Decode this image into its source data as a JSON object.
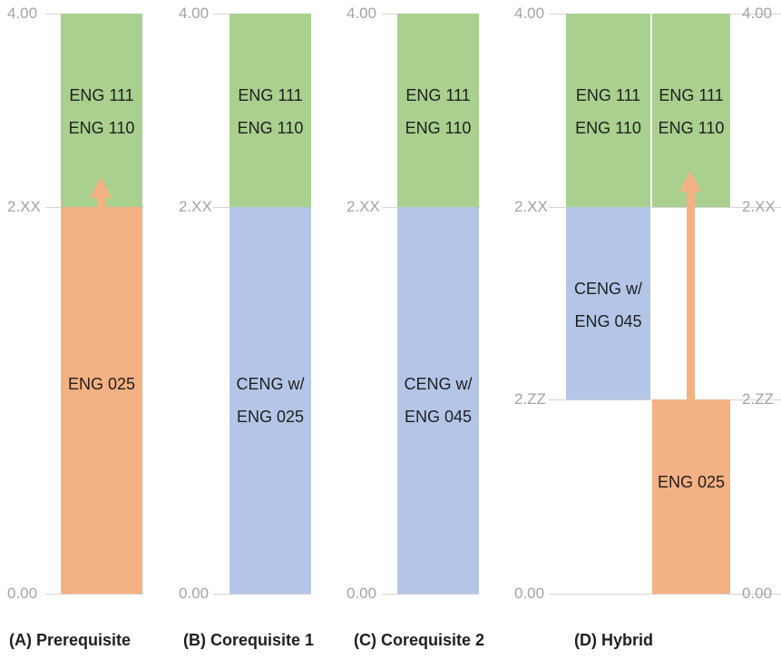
{
  "axis_ticks": {
    "top": "4.00",
    "mid": "2.XX",
    "low": "2.ZZ",
    "bottom": "0.00"
  },
  "colors": {
    "green": "#a9d08e",
    "orange": "#f4b183",
    "blue": "#b4c6e7",
    "gridline": "#d6d6d6"
  },
  "panels": {
    "a": {
      "caption": "(A) Prerequisite",
      "upper_line1": "ENG 111",
      "upper_line2": "ENG 110",
      "lower_line1": "ENG 025"
    },
    "b": {
      "caption": "(B) Corequisite 1",
      "upper_line1": "ENG 111",
      "upper_line2": "ENG 110",
      "lower_line1": "CENG w/",
      "lower_line2": "ENG 025"
    },
    "c": {
      "caption": "(C) Corequisite 2",
      "upper_line1": "ENG 111",
      "upper_line2": "ENG 110",
      "lower_line1": "CENG w/",
      "lower_line2": "ENG 045"
    },
    "d": {
      "caption": "(D) Hybrid",
      "left_upper_line1": "ENG 111",
      "left_upper_line2": "ENG 110",
      "right_upper_line1": "ENG 111",
      "right_upper_line2": "ENG 110",
      "mid_line1": "CENG w/",
      "mid_line2": "ENG 045",
      "bottom_line1": "ENG 025"
    }
  }
}
